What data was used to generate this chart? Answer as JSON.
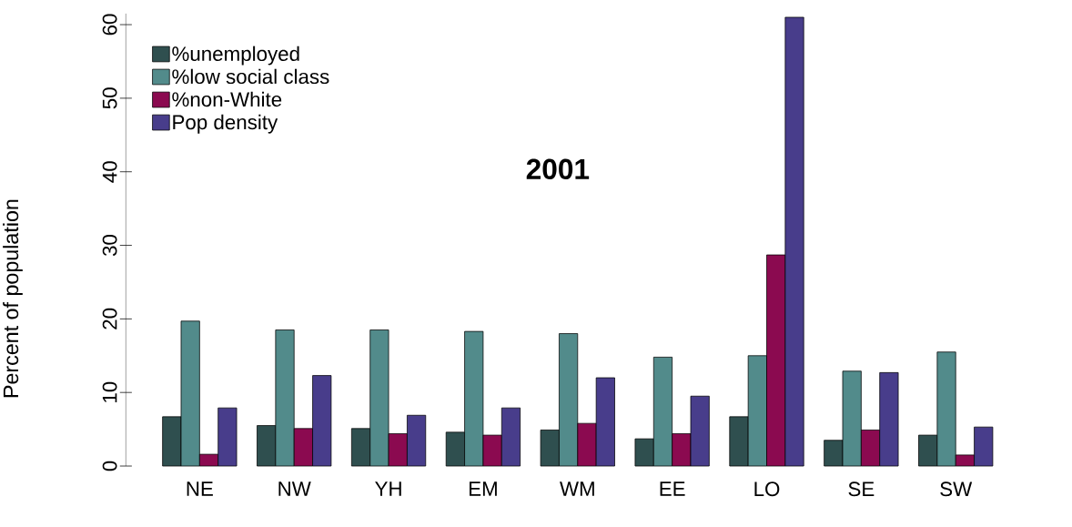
{
  "chart_data": {
    "type": "bar",
    "title": "2001",
    "ylabel": "Percent of population",
    "categories": [
      "NE",
      "NW",
      "YH",
      "EM",
      "WM",
      "EE",
      "LO",
      "SE",
      "SW"
    ],
    "series": [
      {
        "name": "%unemployed",
        "color": "#2f4f4f",
        "values": [
          6.7,
          5.5,
          5.1,
          4.6,
          4.9,
          3.7,
          6.7,
          3.5,
          4.2
        ]
      },
      {
        "name": "%low social class",
        "color": "#528b8b",
        "values": [
          19.7,
          18.5,
          18.5,
          18.3,
          18.0,
          14.8,
          15.0,
          12.9,
          15.5
        ]
      },
      {
        "name": "%non-White",
        "color": "#8b0a50",
        "values": [
          1.6,
          5.1,
          4.4,
          4.2,
          5.8,
          4.4,
          28.7,
          4.9,
          1.5
        ]
      },
      {
        "name": "Pop density",
        "color": "#483d8b",
        "values": [
          7.9,
          12.3,
          6.9,
          7.9,
          12.0,
          9.5,
          61.0,
          12.7,
          5.3
        ]
      }
    ],
    "ylim": [
      0,
      61.5
    ],
    "yticks": [
      0,
      10,
      20,
      30,
      40,
      50,
      60
    ],
    "grid": false,
    "legend": "top left"
  }
}
